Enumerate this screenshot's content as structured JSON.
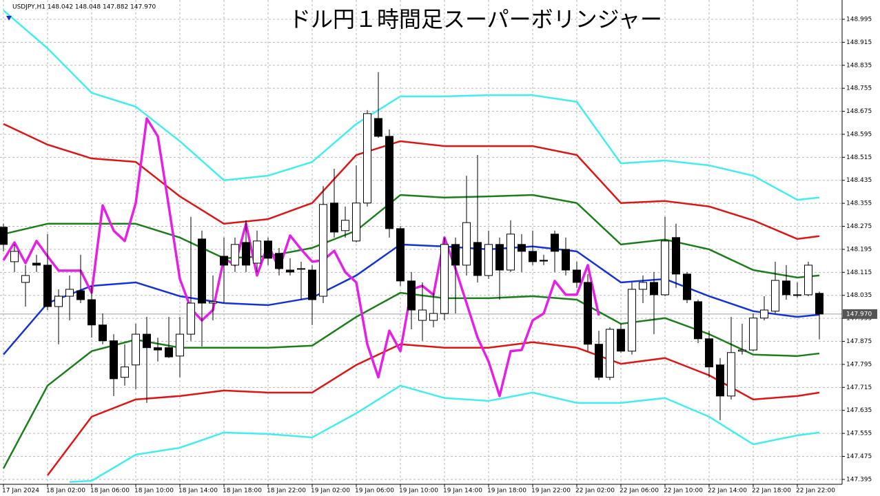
{
  "chart_data": {
    "type": "candlestick",
    "title": "ドル円１時間足スーパーボリンジャー",
    "header": "USDJPY,H1  148.042 148.048 147.882 147.970",
    "categories": [
      "17 Jan 2024",
      null,
      null,
      null,
      "18 Jan 02:00",
      null,
      null,
      null,
      "18 Jan 06:00",
      null,
      null,
      null,
      "18 Jan 10:00",
      null,
      null,
      null,
      "18 Jan 14:00",
      null,
      null,
      null,
      "18 Jan 18:00",
      null,
      null,
      null,
      "18 Jan 22:00",
      null,
      null,
      null,
      "19 Jan 02:00",
      null,
      null,
      null,
      "19 Jan 06:00",
      null,
      null,
      null,
      "19 Jan 10:00",
      null,
      null,
      null,
      "19 Jan 14:00",
      null,
      null,
      null,
      "19 Jan 18:00",
      null,
      null,
      null,
      "19 Jan 22:00",
      null,
      null,
      null,
      "22 Jan 02:00",
      null,
      null,
      null,
      "22 Jan 06:00",
      null,
      null,
      null,
      "22 Jan 10:00",
      null,
      null,
      null,
      "22 Jan 14:00",
      null,
      null,
      null,
      "22 Jan 18:00",
      null,
      null,
      null,
      "22 Jan 22:00",
      null,
      null
    ],
    "open": [
      148.272,
      148.152,
      148.08,
      148.147,
      148.14,
      147.996,
      148.032,
      148.051,
      148.02,
      147.932,
      147.877,
      147.75,
      147.793,
      147.9,
      147.853,
      147.853,
      147.824,
      147.9,
      148.231,
      148.008,
      148.171,
      148.14,
      148.219,
      148.147,
      148.224,
      148.181,
      148.123,
      148.128,
      148.123,
      148.032,
      148.356,
      148.26,
      148.224,
      148.356,
      148.65,
      148.588,
      148.267,
      148.085,
      147.948,
      147.948,
      147.972,
      148.212,
      148.14,
      148.219,
      148.104,
      148.212,
      148.123,
      148.212,
      148.188,
      148.157,
      148.248,
      148.195,
      148.123,
      148.08,
      147.865,
      147.75,
      147.917,
      147.841,
      148.056,
      148.08,
      148.037,
      148.236,
      148.109,
      148.013,
      147.884,
      147.793,
      147.685,
      147.841,
      147.845,
      147.956,
      147.98,
      148.085,
      148.037,
      148.037,
      148.042
    ],
    "high": [
      148.284,
      148.212,
      148.14,
      148.176,
      148.248,
      148.056,
      148.104,
      148.176,
      148.068,
      147.972,
      147.9,
      147.865,
      147.936,
      147.96,
      147.888,
      147.96,
      147.96,
      148.308,
      148.26,
      148.104,
      148.236,
      148.236,
      148.296,
      148.26,
      148.236,
      148.2,
      148.164,
      148.152,
      148.14,
      148.415,
      148.475,
      148.344,
      148.487,
      148.679,
      148.811,
      148.612,
      148.276,
      148.116,
      148.08,
      148.044,
      148.236,
      148.236,
      148.451,
      148.523,
      148.26,
      148.236,
      148.296,
      148.248,
      148.26,
      148.176,
      148.26,
      148.236,
      148.152,
      148.109,
      147.912,
      147.924,
      147.936,
      148.08,
      148.104,
      148.116,
      148.308,
      148.284,
      148.116,
      148.02,
      147.912,
      147.817,
      147.96,
      147.936,
      147.972,
      148.032,
      148.152,
      148.14,
      148.08,
      148.152,
      148.048
    ],
    "low": [
      148.188,
      148.116,
      147.996,
      148.116,
      147.984,
      147.865,
      147.948,
      148.008,
      147.888,
      147.865,
      147.685,
      147.721,
      147.709,
      147.661,
      147.805,
      147.817,
      147.75,
      147.877,
      147.857,
      147.948,
      148.008,
      148.116,
      148.116,
      148.116,
      148.14,
      148.104,
      148.104,
      148.02,
      147.932,
      148.008,
      148.236,
      148.236,
      148.219,
      148.344,
      148.583,
      148.236,
      148.068,
      147.917,
      147.877,
      147.924,
      147.948,
      147.972,
      148.104,
      148.08,
      148.092,
      148.02,
      148.116,
      148.116,
      148.14,
      148.14,
      148.116,
      148.104,
      148.061,
      147.841,
      147.74,
      147.74,
      147.836,
      147.829,
      148.008,
      147.9,
      148.032,
      148.061,
      148.008,
      147.869,
      147.75,
      147.601,
      147.673,
      147.829,
      147.841,
      147.948,
      147.972,
      148.02,
      148.027,
      148.032,
      147.882
    ],
    "close": [
      148.212,
      148.188,
      148.104,
      148.14,
      147.996,
      148.032,
      148.056,
      148.02,
      147.932,
      147.877,
      147.745,
      147.786,
      147.9,
      147.853,
      147.845,
      147.821,
      147.9,
      148.008,
      148.008,
      148.013,
      148.14,
      148.212,
      148.14,
      148.224,
      148.164,
      148.128,
      148.116,
      148.126,
      148.02,
      148.351,
      148.255,
      148.296,
      148.356,
      148.667,
      148.588,
      148.267,
      148.085,
      147.984,
      147.984,
      147.972,
      148.212,
      148.14,
      148.288,
      148.104,
      148.212,
      148.123,
      148.248,
      148.188,
      148.152,
      148.154,
      148.188,
      148.123,
      148.08,
      147.865,
      147.75,
      147.917,
      147.841,
      148.056,
      148.08,
      148.037,
      148.224,
      148.109,
      148.02,
      147.884,
      147.786,
      147.685,
      147.836,
      147.845,
      147.956,
      147.984,
      148.087,
      148.037,
      148.035,
      148.14,
      147.97
    ],
    "lines": [
      {
        "color": "#40eef0",
        "x": [
          0,
          4,
          8,
          12,
          16,
          20,
          24,
          28,
          32,
          36,
          40,
          44,
          48,
          52,
          56,
          60,
          64,
          68,
          72,
          74
        ],
        "values": [
          149.026,
          148.894,
          148.739,
          148.691,
          148.571,
          148.435,
          148.451,
          148.499,
          148.631,
          148.727,
          148.727,
          148.731,
          148.731,
          148.708,
          148.494,
          148.504,
          148.487,
          148.451,
          148.367,
          148.375
        ]
      },
      {
        "color": "#e01414",
        "x": [
          0,
          4,
          8,
          12,
          16,
          20,
          24,
          28,
          32,
          36,
          40,
          44,
          48,
          52,
          56,
          60,
          64,
          68,
          72,
          74
        ],
        "values": [
          148.631,
          148.559,
          148.511,
          148.499,
          148.379,
          148.284,
          148.3,
          148.356,
          148.523,
          148.571,
          148.554,
          148.554,
          148.554,
          148.523,
          148.356,
          148.363,
          148.344,
          148.296,
          148.231,
          148.241
        ]
      },
      {
        "color": "#1a7f1a",
        "x": [
          0,
          4,
          8,
          12,
          16,
          20,
          24,
          28,
          32,
          36,
          40,
          44,
          48,
          52,
          56,
          60,
          64,
          68,
          72,
          74
        ],
        "values": [
          148.248,
          148.284,
          148.284,
          148.284,
          148.236,
          148.164,
          148.171,
          148.2,
          148.26,
          148.384,
          148.375,
          148.379,
          148.384,
          148.356,
          148.212,
          148.229,
          148.195,
          148.123,
          148.097,
          148.104
        ]
      },
      {
        "color": "#1232dc",
        "x": [
          0,
          4,
          8,
          12,
          16,
          20,
          24,
          28,
          32,
          36,
          40,
          44,
          48,
          52,
          56,
          60,
          64,
          68,
          72,
          74
        ],
        "values": [
          147.829,
          148.008,
          148.068,
          148.08,
          148.032,
          148.008,
          148.001,
          148.027,
          148.104,
          148.212,
          148.205,
          148.195,
          148.205,
          148.188,
          148.08,
          148.092,
          148.032,
          147.98,
          147.96,
          147.968
        ]
      },
      {
        "color": "#1a7f1a",
        "x": [
          0,
          4,
          8,
          12,
          16,
          20,
          24,
          28,
          32,
          36,
          40,
          44,
          48,
          52,
          56,
          60,
          64,
          68,
          72,
          74
        ],
        "values": [
          147.433,
          147.721,
          147.841,
          147.881,
          147.853,
          147.853,
          147.853,
          147.86,
          147.96,
          148.044,
          148.025,
          148.025,
          148.032,
          148.02,
          147.936,
          147.956,
          147.9,
          147.829,
          147.824,
          147.833
        ]
      },
      {
        "color": "#e01414",
        "x": [
          4,
          8,
          12,
          16,
          20,
          24,
          28,
          32,
          36,
          40,
          44,
          48,
          52,
          56,
          60,
          64,
          68,
          72,
          74
        ],
        "values": [
          147.409,
          147.613,
          147.673,
          147.685,
          147.704,
          147.697,
          147.697,
          147.793,
          147.865,
          147.853,
          147.853,
          147.872,
          147.853,
          147.797,
          147.817,
          147.757,
          147.673,
          147.685,
          147.697
        ]
      },
      {
        "color": "#40eef0",
        "x": [
          6,
          8,
          12,
          16,
          20,
          24,
          28,
          32,
          36,
          40,
          44,
          48,
          52,
          56,
          60,
          64,
          68,
          72,
          74
        ],
        "values": [
          147.386,
          147.39,
          147.481,
          147.505,
          147.558,
          147.553,
          147.541,
          147.625,
          147.721,
          147.678,
          147.668,
          147.697,
          147.661,
          147.661,
          147.678,
          147.613,
          147.517,
          147.548,
          147.558
        ]
      },
      {
        "color": "#e61ee6",
        "x": [
          0,
          1,
          2,
          3,
          4,
          5,
          6,
          7,
          8,
          9,
          10,
          11,
          12,
          13,
          14,
          15,
          16,
          17,
          18,
          19,
          20,
          21,
          22,
          23,
          24,
          25,
          26,
          27,
          28,
          29,
          30,
          31,
          32,
          33,
          34,
          35,
          36,
          37,
          38,
          39,
          40,
          41,
          42,
          43,
          44,
          45,
          46,
          47,
          48,
          49,
          50,
          51,
          52,
          53,
          54
        ],
        "values": [
          148.157,
          148.219,
          148.147,
          148.224,
          148.171,
          148.121,
          148.121,
          148.121,
          148.044,
          148.348,
          148.26,
          148.224,
          148.356,
          148.65,
          148.588,
          148.344,
          148.092,
          147.989,
          147.948,
          147.984,
          148.164,
          148.14,
          148.284,
          148.104,
          148.212,
          148.128,
          148.243,
          148.195,
          148.152,
          148.157,
          148.19,
          148.116,
          148.08,
          147.865,
          147.75,
          147.912,
          147.841,
          148.056,
          148.068,
          148.037,
          148.236,
          148.128,
          148.008,
          147.888,
          147.805,
          147.685,
          147.841,
          147.845,
          147.948,
          147.972,
          148.085,
          148.037,
          148.037,
          148.14,
          147.965
        ]
      }
    ],
    "ylim": [
      147.378,
      149.062
    ],
    "yticks": [
      148.995,
      148.915,
      148.835,
      148.755,
      148.675,
      148.595,
      148.515,
      148.435,
      148.355,
      148.275,
      148.195,
      148.115,
      148.035,
      147.955,
      147.875,
      147.795,
      147.715,
      147.635,
      147.555,
      147.475,
      147.395
    ],
    "current_price": {
      "value": 147.97,
      "label": "147.970"
    },
    "grid": true
  }
}
